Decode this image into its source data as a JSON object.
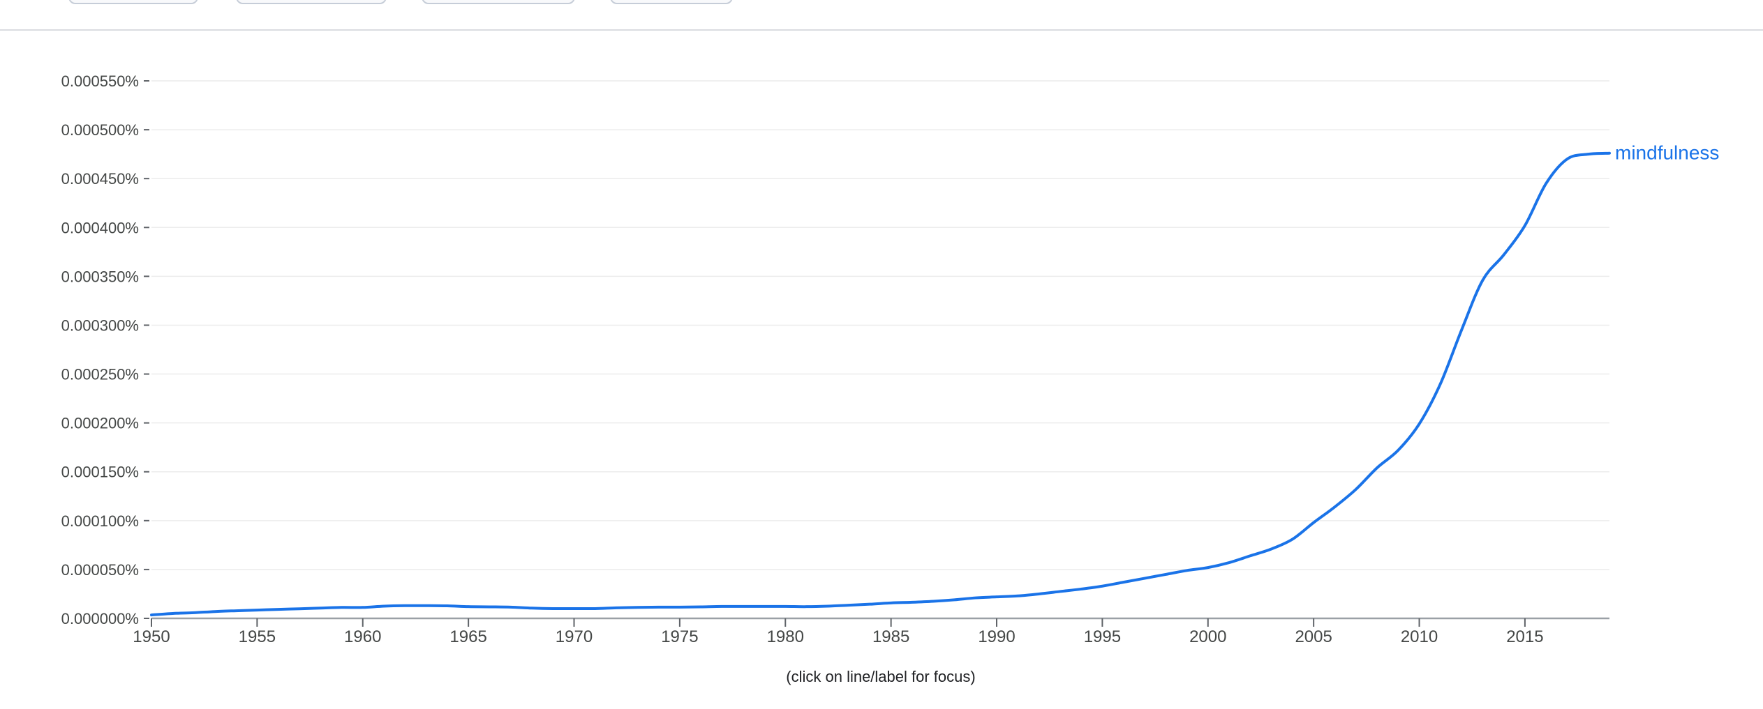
{
  "toolbar": {
    "chips": [
      {
        "name": "toolbar-chip-1"
      },
      {
        "name": "toolbar-chip-2"
      },
      {
        "name": "toolbar-chip-3"
      },
      {
        "name": "toolbar-chip-4"
      }
    ]
  },
  "chart_data": {
    "type": "line",
    "title": "",
    "xlabel": "",
    "ylabel": "",
    "xlim": [
      1950,
      2019
    ],
    "ylim": [
      0,
      0.00055
    ],
    "grid": true,
    "y_ticks": [
      {
        "value": 0.0,
        "label": "0.000000%"
      },
      {
        "value": 5e-05,
        "label": "0.000050%"
      },
      {
        "value": 0.0001,
        "label": "0.000100%"
      },
      {
        "value": 0.00015,
        "label": "0.000150%"
      },
      {
        "value": 0.0002,
        "label": "0.000200%"
      },
      {
        "value": 0.00025,
        "label": "0.000250%"
      },
      {
        "value": 0.0003,
        "label": "0.000300%"
      },
      {
        "value": 0.00035,
        "label": "0.000350%"
      },
      {
        "value": 0.0004,
        "label": "0.000400%"
      },
      {
        "value": 0.00045,
        "label": "0.000450%"
      },
      {
        "value": 0.0005,
        "label": "0.000500%"
      },
      {
        "value": 0.00055,
        "label": "0.000550%"
      }
    ],
    "x_ticks": [
      {
        "value": 1950,
        "label": "1950"
      },
      {
        "value": 1955,
        "label": "1955"
      },
      {
        "value": 1960,
        "label": "1960"
      },
      {
        "value": 1965,
        "label": "1965"
      },
      {
        "value": 1970,
        "label": "1970"
      },
      {
        "value": 1975,
        "label": "1975"
      },
      {
        "value": 1980,
        "label": "1980"
      },
      {
        "value": 1985,
        "label": "1985"
      },
      {
        "value": 1990,
        "label": "1990"
      },
      {
        "value": 1995,
        "label": "1995"
      },
      {
        "value": 2000,
        "label": "2000"
      },
      {
        "value": 2005,
        "label": "2005"
      },
      {
        "value": 2010,
        "label": "2010"
      },
      {
        "value": 2015,
        "label": "2015"
      }
    ],
    "series": [
      {
        "name": "mindfulness",
        "color": "#1a73e8",
        "x": [
          1950,
          1951,
          1952,
          1953,
          1954,
          1955,
          1956,
          1957,
          1958,
          1959,
          1960,
          1961,
          1962,
          1963,
          1964,
          1965,
          1966,
          1967,
          1968,
          1969,
          1970,
          1971,
          1972,
          1973,
          1974,
          1975,
          1976,
          1977,
          1978,
          1979,
          1980,
          1981,
          1982,
          1983,
          1984,
          1985,
          1986,
          1987,
          1988,
          1989,
          1990,
          1991,
          1992,
          1993,
          1994,
          1995,
          1996,
          1997,
          1998,
          1999,
          2000,
          2001,
          2002,
          2003,
          2004,
          2005,
          2006,
          2007,
          2008,
          2009,
          2010,
          2011,
          2012,
          2013,
          2014,
          2015,
          2016,
          2017,
          2018,
          2019
        ],
        "values": [
          3.5e-06,
          5e-06,
          5.8e-06,
          7e-06,
          7.8e-06,
          8.5e-06,
          9.2e-06,
          9.8e-06,
          1.05e-05,
          1.12e-05,
          1.12e-05,
          1.25e-05,
          1.3e-05,
          1.3e-05,
          1.28e-05,
          1.2e-05,
          1.18e-05,
          1.15e-05,
          1.05e-05,
          1e-05,
          1e-05,
          1e-05,
          1.08e-05,
          1.12e-05,
          1.15e-05,
          1.15e-05,
          1.18e-05,
          1.22e-05,
          1.22e-05,
          1.22e-05,
          1.22e-05,
          1.2e-05,
          1.25e-05,
          1.35e-05,
          1.45e-05,
          1.58e-05,
          1.65e-05,
          1.75e-05,
          1.9e-05,
          2.1e-05,
          2.2e-05,
          2.3e-05,
          2.5e-05,
          2.75e-05,
          3e-05,
          3.3e-05,
          3.7e-05,
          4.1e-05,
          4.5e-05,
          4.9e-05,
          5.2e-05,
          5.7e-05,
          6.4e-05,
          7.1e-05,
          8.1e-05,
          9.8e-05,
          0.000114,
          0.000132,
          0.000154,
          0.000172,
          0.000199,
          0.00024,
          0.000295,
          0.000346,
          0.000372,
          0.000402,
          0.000445,
          0.00047,
          0.000475,
          0.000476
        ]
      }
    ],
    "annotations": [
      {
        "text": "(click on line/label for focus)"
      }
    ]
  }
}
